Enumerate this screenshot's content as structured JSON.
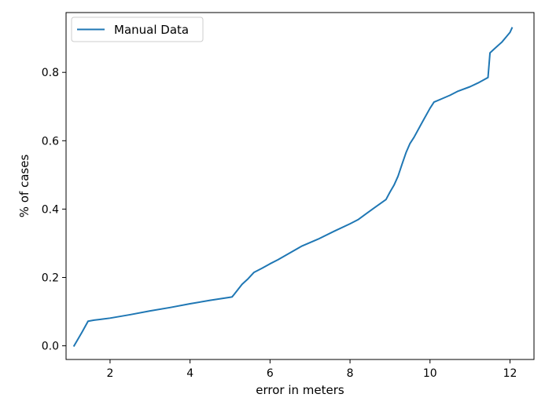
{
  "chart_data": {
    "type": "line",
    "title": "",
    "xlabel": "error in meters",
    "ylabel": "% of cases",
    "xlim": [
      0.9,
      12.6
    ],
    "ylim": [
      -0.04,
      0.975
    ],
    "xticks": [
      2,
      4,
      6,
      8,
      10,
      12
    ],
    "yticks": [
      0.0,
      0.2,
      0.4,
      0.6,
      0.8
    ],
    "xtick_labels": [
      "2",
      "4",
      "6",
      "8",
      "10",
      "12"
    ],
    "ytick_labels": [
      "0.0",
      "0.2",
      "0.4",
      "0.6",
      "0.8"
    ],
    "grid": false,
    "legend": {
      "position": "top-left"
    },
    "series": [
      {
        "name": "Manual Data",
        "color": "#1f77b4",
        "x": [
          1.1,
          1.2,
          1.3,
          1.45,
          1.6,
          1.8,
          2.0,
          2.5,
          3.0,
          3.5,
          4.0,
          4.5,
          5.0,
          5.05,
          5.1,
          5.2,
          5.3,
          5.45,
          5.6,
          5.8,
          6.0,
          6.2,
          6.5,
          6.8,
          7.2,
          7.6,
          8.0,
          8.2,
          8.4,
          8.6,
          8.9,
          9.0,
          9.1,
          9.2,
          9.3,
          9.4,
          9.5,
          9.6,
          9.8,
          10.0,
          10.1,
          10.3,
          10.5,
          10.7,
          11.0,
          11.2,
          11.45,
          11.5,
          11.6,
          11.8,
          11.9,
          12.0,
          12.05
        ],
        "y": [
          0.0,
          0.02,
          0.04,
          0.072,
          0.075,
          0.078,
          0.081,
          0.091,
          0.102,
          0.112,
          0.123,
          0.133,
          0.142,
          0.143,
          0.15,
          0.165,
          0.18,
          0.196,
          0.215,
          0.227,
          0.24,
          0.252,
          0.272,
          0.292,
          0.312,
          0.335,
          0.357,
          0.369,
          0.386,
          0.403,
          0.428,
          0.45,
          0.47,
          0.496,
          0.531,
          0.565,
          0.592,
          0.61,
          0.653,
          0.695,
          0.713,
          0.723,
          0.733,
          0.745,
          0.758,
          0.769,
          0.785,
          0.857,
          0.868,
          0.889,
          0.903,
          0.917,
          0.93
        ]
      }
    ]
  }
}
